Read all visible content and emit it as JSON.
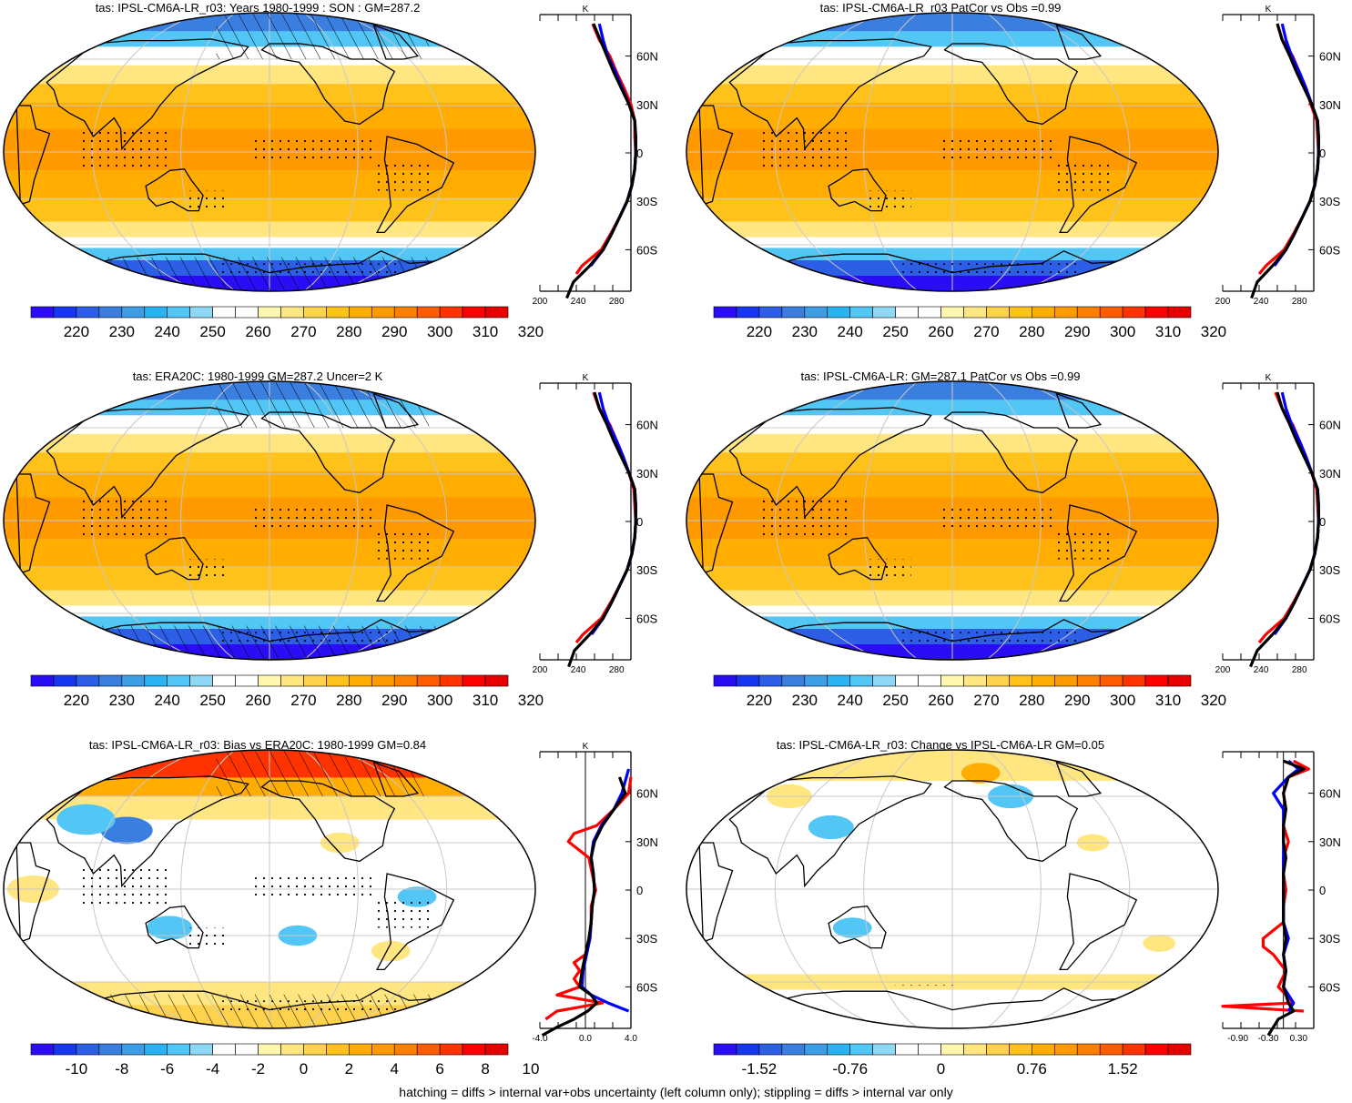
{
  "footer_note": "hatching = diffs > internal var+obs uncertainty (left column only); stippling = diffs > internal var only",
  "colors": {
    "abs_scale": [
      "#2a0df5",
      "#1736f0",
      "#2c5ee6",
      "#3a7fe0",
      "#3d9ee6",
      "#29b3f2",
      "#52c6f5",
      "#8fd8f5",
      "#ffffff",
      "#ffffff",
      "#fff7b0",
      "#ffe680",
      "#ffd24d",
      "#ffc21a",
      "#ffad00",
      "#ff9900",
      "#ff8000",
      "#ff5c00",
      "#ff3300",
      "#ff0000",
      "#e60000"
    ],
    "diff_scale": [
      "#2a0df5",
      "#1736f0",
      "#2c5ee6",
      "#3a7fe0",
      "#3d9ee6",
      "#29b3f2",
      "#52c6f5",
      "#8fd8f5",
      "#ffffff",
      "#ffffff",
      "#fff7b0",
      "#ffe680",
      "#ffd24d",
      "#ffc21a",
      "#ffad00",
      "#ff9900",
      "#ff8000",
      "#ff5c00",
      "#ff3300",
      "#ff0000",
      "#e60000"
    ],
    "line_model": "#000000",
    "line_obs": "#0000ff",
    "line_alt": "#ff0000"
  },
  "chart_data": [
    {
      "type": "heatmap",
      "title": "tas: IPSL-CM6A-LR_r03: Years 1980-1999 : SON : GM=287.2",
      "colorbar_labels": [
        "220",
        "230",
        "240",
        "250",
        "260",
        "270",
        "280",
        "290",
        "300",
        "310",
        "320"
      ],
      "hatching": true,
      "stippling": true,
      "zonal_profile": {
        "unit": "K",
        "x_ticks": [
          "200",
          "240",
          "280"
        ],
        "xlim": [
          200,
          295
        ],
        "y_ticks": [
          "60N",
          "30N",
          "0",
          "30S",
          "60S"
        ],
        "series": [
          {
            "color": "black",
            "lat": [
              -90,
              -80,
              -70,
              -60,
              -50,
              -40,
              -30,
              -20,
              -10,
              0,
              10,
              20,
              30,
              40,
              50,
              60,
              70,
              80
            ],
            "values": [
              228,
              235,
              252,
              266,
              275,
              283,
              291,
              296,
              299,
              300,
              300,
              299,
              293,
              285,
              277,
              270,
              263,
              256
            ]
          },
          {
            "color": "blue",
            "lat": [
              -70,
              -60,
              -50,
              -40,
              -30,
              -20,
              -10,
              0,
              10,
              20,
              30,
              40,
              50,
              60,
              70,
              80
            ],
            "values": [
              253,
              266,
              275,
              283,
              291,
              296,
              299,
              300,
              300,
              299,
              293,
              286,
              279,
              271,
              266,
              262
            ]
          },
          {
            "color": "red",
            "lat": [
              -75,
              -70,
              -60,
              -50,
              -40,
              -30,
              -20,
              -10,
              0,
              10,
              20,
              30,
              40,
              50,
              60,
              70,
              80
            ],
            "values": [
              238,
              244,
              264,
              274,
              283,
              291,
              296,
              299,
              300,
              299,
              299,
              295,
              288,
              280,
              273,
              262,
              255
            ]
          }
        ]
      }
    },
    {
      "type": "heatmap",
      "title": "tas: IPSL-CM6A-LR_r03 PatCor vs Obs =0.99",
      "colorbar_labels": [
        "220",
        "230",
        "240",
        "250",
        "260",
        "270",
        "280",
        "290",
        "300",
        "310",
        "320"
      ],
      "hatching": false,
      "stippling": true,
      "zonal_profile": {
        "unit": "K",
        "x_ticks": [
          "200",
          "240",
          "280"
        ],
        "xlim": [
          200,
          295
        ],
        "y_ticks": [
          "60N",
          "30N",
          "0",
          "30S",
          "60S"
        ],
        "series": [
          {
            "color": "black",
            "lat": [
              -90,
              -80,
              -70,
              -60,
              -50,
              -40,
              -30,
              -20,
              -10,
              0,
              10,
              20,
              30,
              40,
              50,
              60,
              70,
              80
            ],
            "values": [
              230,
              236,
              252,
              266,
              275,
              283,
              291,
              296,
              299,
              300,
              300,
              299,
              293,
              285,
              277,
              270,
              262,
              257
            ]
          },
          {
            "color": "blue",
            "lat": [
              -70,
              -60,
              -50,
              -40,
              -30,
              -20,
              -10,
              0,
              10,
              20,
              30,
              40,
              50,
              60,
              70,
              80
            ],
            "values": [
              254,
              266,
              275,
              283,
              291,
              296,
              299,
              300,
              300,
              299,
              293,
              287,
              280,
              272,
              266,
              262
            ]
          },
          {
            "color": "red",
            "lat": [
              -75,
              -70,
              -60,
              -50,
              -40,
              -30,
              -20,
              -10,
              0,
              10,
              20,
              30,
              40,
              50,
              60,
              70,
              80
            ],
            "values": [
              238,
              245,
              264,
              274,
              283,
              291,
              296,
              299,
              300,
              299,
              298,
              292,
              287,
              280,
              273,
              262,
              257
            ]
          }
        ]
      }
    },
    {
      "type": "heatmap",
      "title": "tas: ERA20C: 1980-1999 GM=287.2 Uncer=2 K",
      "colorbar_labels": [
        "220",
        "230",
        "240",
        "250",
        "260",
        "270",
        "280",
        "290",
        "300",
        "310",
        "320"
      ],
      "hatching": true,
      "stippling": true,
      "zonal_profile": {
        "unit": "K",
        "x_ticks": [
          "200",
          "240",
          "280"
        ],
        "xlim": [
          200,
          295
        ],
        "y_ticks": [
          "60N",
          "30N",
          "0",
          "30S",
          "60S"
        ],
        "series": [
          {
            "color": "black",
            "lat": [
              -90,
              -80,
              -70,
              -60,
              -50,
              -40,
              -30,
              -20,
              -10,
              0,
              10,
              20,
              30,
              40,
              50,
              60,
              70,
              80
            ],
            "values": [
              230,
              236,
              252,
              266,
              275,
              283,
              291,
              296,
              299,
              300,
              300,
              299,
              293,
              285,
              277,
              270,
              262,
              257
            ]
          },
          {
            "color": "blue",
            "lat": [
              -70,
              -60,
              -50,
              -40,
              -30,
              -20,
              -10,
              0,
              10,
              20,
              30,
              40,
              50,
              60,
              70,
              80
            ],
            "values": [
              254,
              266,
              275,
              283,
              291,
              296,
              299,
              300,
              300,
              299,
              293,
              287,
              280,
              272,
              266,
              262
            ]
          },
          {
            "color": "red",
            "lat": [
              -75,
              -70,
              -60,
              -50,
              -40,
              -30,
              -20,
              -10,
              0,
              10,
              20,
              30,
              40,
              50,
              60,
              70,
              80
            ],
            "values": [
              238,
              245,
              264,
              274,
              283,
              291,
              296,
              299,
              300,
              299,
              298,
              293,
              287,
              280,
              273,
              262,
              256
            ]
          }
        ]
      }
    },
    {
      "type": "heatmap",
      "title": "tas: IPSL-CM6A-LR: GM=287.1 PatCor vs Obs =0.99",
      "colorbar_labels": [
        "220",
        "230",
        "240",
        "250",
        "260",
        "270",
        "280",
        "290",
        "300",
        "310",
        "320"
      ],
      "hatching": false,
      "stippling": true,
      "zonal_profile": {
        "unit": "K",
        "x_ticks": [
          "200",
          "240",
          "280"
        ],
        "xlim": [
          200,
          295
        ],
        "y_ticks": [
          "60N",
          "30N",
          "0",
          "30S",
          "60S"
        ],
        "series": [
          {
            "color": "black",
            "lat": [
              -90,
              -80,
              -70,
              -60,
              -50,
              -40,
              -30,
              -20,
              -10,
              0,
              10,
              20,
              30,
              40,
              50,
              60,
              70,
              80
            ],
            "values": [
              229,
              236,
              252,
              266,
              275,
              283,
              291,
              296,
              299,
              300,
              300,
              299,
              293,
              285,
              277,
              270,
              262,
              257
            ]
          },
          {
            "color": "blue",
            "lat": [
              -70,
              -60,
              -50,
              -40,
              -30,
              -20,
              -10,
              0,
              10,
              20,
              30,
              40,
              50,
              60,
              70,
              80
            ],
            "values": [
              254,
              266,
              275,
              283,
              291,
              296,
              299,
              300,
              300,
              299,
              293,
              287,
              280,
              272,
              266,
              262
            ]
          },
          {
            "color": "red",
            "lat": [
              -75,
              -70,
              -60,
              -50,
              -40,
              -30,
              -20,
              -10,
              0,
              10,
              20,
              30,
              40,
              50,
              60,
              70,
              80
            ],
            "values": [
              238,
              245,
              264,
              274,
              283,
              291,
              296,
              299,
              300,
              299,
              298,
              293,
              287,
              280,
              273,
              262,
              255
            ]
          }
        ]
      }
    },
    {
      "type": "heatmap",
      "title": "tas: IPSL-CM6A-LR_r03: Bias vs ERA20C: 1980-1999  GM=0.84",
      "colorbar_labels": [
        "-10",
        "-8",
        "-6",
        "-4",
        "-2",
        "0",
        "2",
        "4",
        "6",
        "8",
        "10"
      ],
      "hatching": true,
      "stippling": true,
      "zonal_profile": {
        "unit": "K",
        "x_ticks": [
          "-4.0",
          "0.0",
          "4.0"
        ],
        "xlim": [
          -4,
          4
        ],
        "y_ticks": [
          "60N",
          "30N",
          "0",
          "30S",
          "60S"
        ],
        "series": [
          {
            "color": "black",
            "lat": [
              -90,
              -85,
              -80,
              -75,
              -70,
              -65,
              -60,
              -50,
              -40,
              -30,
              -20,
              -10,
              0,
              10,
              20,
              30,
              40,
              50,
              60,
              70
            ],
            "values": [
              -3.8,
              -2.5,
              -1.0,
              0.2,
              1.0,
              0.5,
              -0.5,
              -0.3,
              0.0,
              0.3,
              0.5,
              0.6,
              0.8,
              0.7,
              0.5,
              0.8,
              1.5,
              2.5,
              3.5,
              3.0
            ]
          },
          {
            "color": "blue",
            "lat": [
              -75,
              -70,
              -65,
              -60,
              -50,
              -40,
              -30,
              -20,
              -10,
              0,
              10,
              20,
              30,
              40,
              50,
              60,
              70,
              75
            ],
            "values": [
              3.8,
              2.0,
              0.5,
              -0.3,
              -0.2,
              0.1,
              0.4,
              0.5,
              0.6,
              0.8,
              0.7,
              0.5,
              0.7,
              1.4,
              2.5,
              3.2,
              3.6,
              3.8
            ]
          },
          {
            "color": "red",
            "lat": [
              -80,
              -75,
              -70,
              -65,
              -60,
              -55,
              -50,
              -45,
              -40,
              -30,
              -20,
              -10,
              0,
              10,
              20,
              30,
              35,
              40,
              50,
              60,
              70
            ],
            "values": [
              -3.5,
              -2.5,
              1.5,
              -2.5,
              -0.5,
              -1.0,
              -0.5,
              -1.0,
              0.0,
              0.4,
              0.5,
              0.5,
              0.9,
              0.6,
              0.3,
              -1.5,
              -1.0,
              1.0,
              2.5,
              3.8,
              4.0
            ]
          }
        ]
      }
    },
    {
      "type": "heatmap",
      "title": "tas: IPSL-CM6A-LR_r03: Change vs IPSL-CM6A-LR GM=0.05",
      "colorbar_labels": [
        "-1.52",
        "-0.76",
        "0",
        "0.76",
        "1.52"
      ],
      "hatching": false,
      "stippling": true,
      "zonal_profile": {
        "unit": "",
        "x_ticks": [
          "-0.90",
          "-0.30",
          "0.30"
        ],
        "xlim": [
          -1.2,
          0.6
        ],
        "y_ticks": [
          "60N",
          "30N",
          "0",
          "30S",
          "60S"
        ],
        "series": [
          {
            "color": "black",
            "lat": [
              -90,
              -80,
              -75,
              -70,
              -60,
              -50,
              -40,
              -30,
              -20,
              -10,
              0,
              10,
              20,
              30,
              40,
              50,
              60,
              70,
              75,
              80
            ],
            "values": [
              -0.3,
              -0.1,
              0.2,
              0.1,
              0.0,
              0.05,
              0.0,
              0.05,
              0.0,
              0.0,
              0.0,
              0.0,
              0.05,
              0.0,
              0.0,
              0.05,
              0.0,
              0.1,
              0.4,
              0.0
            ]
          },
          {
            "color": "blue",
            "lat": [
              -75,
              -70,
              -60,
              -50,
              -40,
              -30,
              -20,
              -10,
              0,
              10,
              20,
              30,
              40,
              50,
              60,
              70,
              75,
              80
            ],
            "values": [
              0.1,
              0.2,
              0.0,
              0.05,
              0.0,
              0.1,
              0.0,
              0.0,
              0.0,
              0.0,
              0.0,
              0.0,
              0.0,
              0.0,
              -0.2,
              0.1,
              0.3,
              0.1
            ]
          },
          {
            "color": "red",
            "lat": [
              -75,
              -72,
              -70,
              -60,
              -50,
              -40,
              -35,
              -30,
              -25,
              -20,
              -10,
              0,
              10,
              20,
              30,
              40,
              50,
              60,
              70,
              75,
              80
            ],
            "values": [
              0.4,
              -1.2,
              0.2,
              -0.1,
              0.05,
              -0.2,
              -0.4,
              -0.4,
              -0.2,
              0.0,
              0.0,
              0.05,
              0.0,
              0.0,
              0.1,
              0.0,
              0.05,
              0.0,
              0.1,
              0.5,
              0.2
            ]
          }
        ]
      }
    }
  ]
}
